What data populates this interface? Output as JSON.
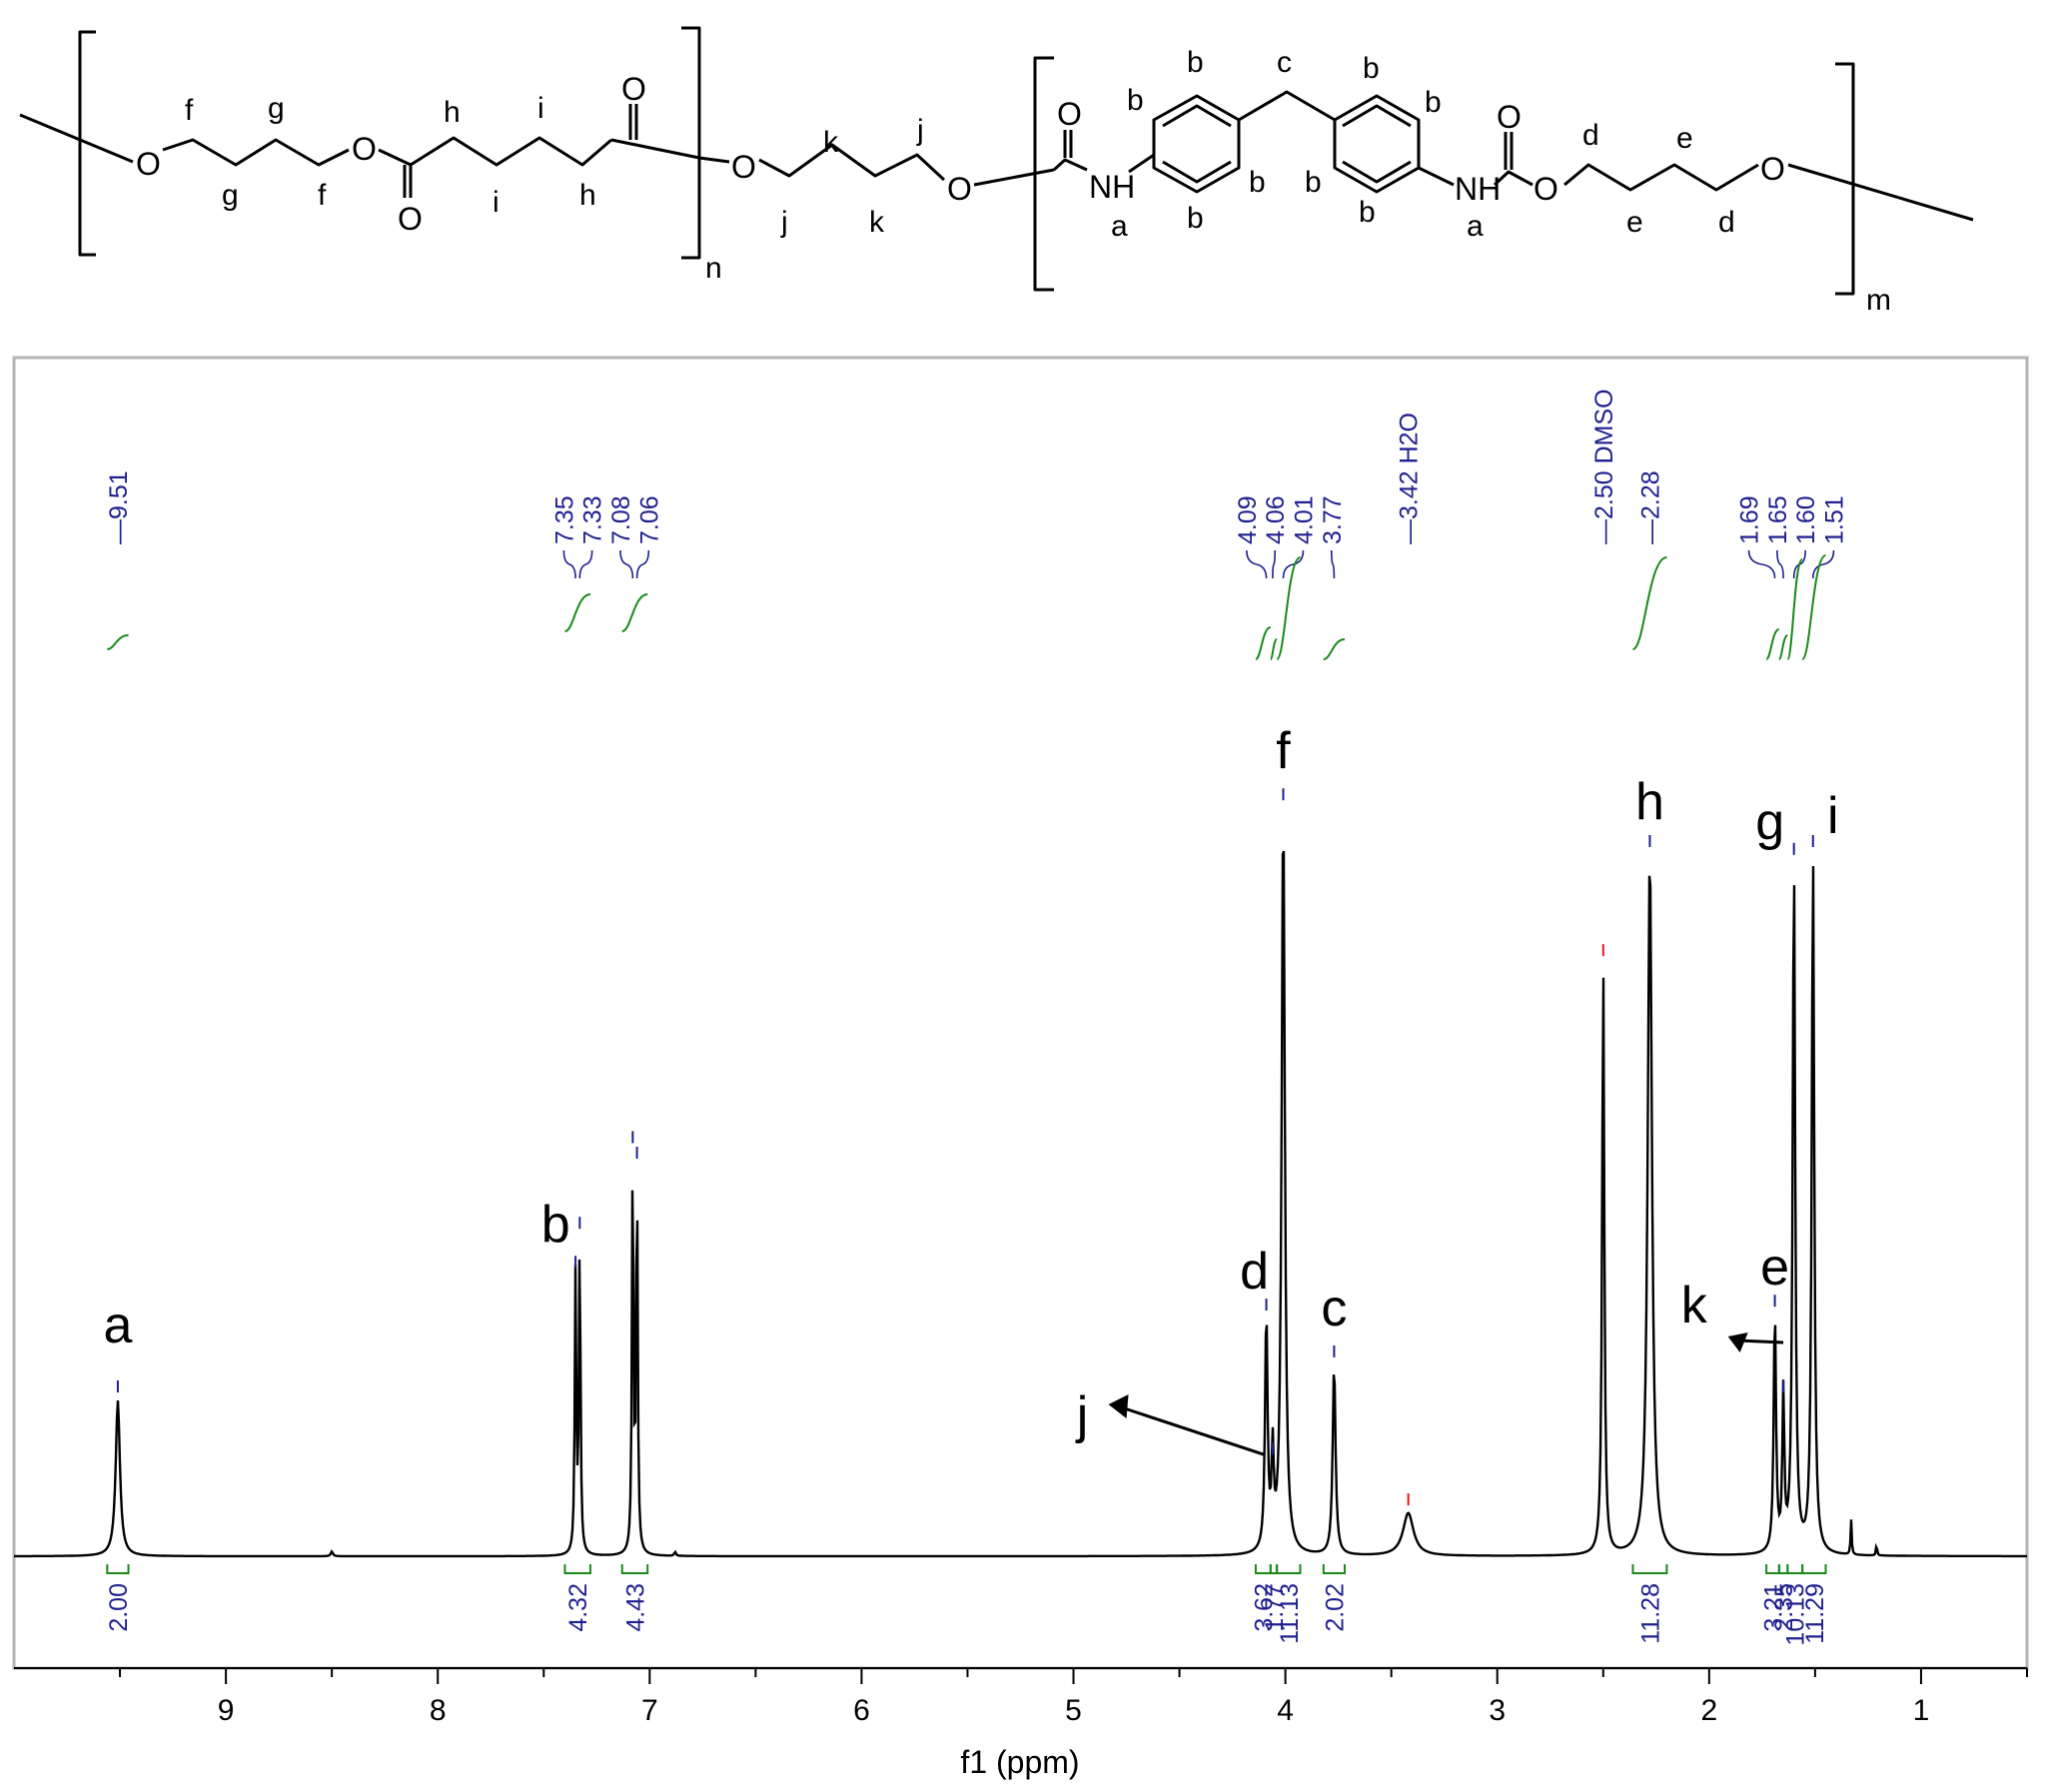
{
  "structure": {
    "atoms": {
      "o1": "O",
      "o2": "O",
      "o3": "O",
      "o4": "O",
      "o5": "O",
      "o6": "O",
      "o7": "O",
      "o8": "O",
      "o9": "O",
      "o10": "O",
      "o11": "O",
      "nh1": "NH",
      "nh2": "NH"
    },
    "subscripts": {
      "n": "n",
      "m": "m"
    },
    "hlabels": [
      "f",
      "g",
      "g",
      "f",
      "h",
      "i",
      "i",
      "h",
      "k",
      "j",
      "j",
      "k",
      "a",
      "b",
      "b",
      "b",
      "b",
      "c",
      "b",
      "b",
      "b",
      "b",
      "a",
      "d",
      "e",
      "e",
      "d"
    ]
  },
  "chart_data": {
    "type": "line",
    "title": "",
    "xlabel": "f1 (ppm)",
    "ylabel": "",
    "xlim": [
      10.0,
      0.5
    ],
    "x_reversed": true,
    "grid": false,
    "xticks": [
      9,
      8,
      7,
      6,
      5,
      4,
      3,
      2,
      1
    ],
    "xtick_labels": [
      "9",
      "8",
      "7",
      "6",
      "5",
      "4",
      "3",
      "2",
      "1"
    ],
    "series": [
      {
        "peaks": [
          {
            "shift": 9.51,
            "height": 0.2,
            "width": 0.012
          },
          {
            "shift": 8.5,
            "height": 0.006,
            "width": 0.006
          },
          {
            "shift": 7.35,
            "height": 0.36,
            "width": 0.0042
          },
          {
            "shift": 7.33,
            "height": 0.41,
            "width": 0.0042
          },
          {
            "shift": 7.08,
            "height": 0.52,
            "width": 0.0042
          },
          {
            "shift": 7.06,
            "height": 0.5,
            "width": 0.0042
          },
          {
            "shift": 6.88,
            "height": 0.005,
            "width": 0.005
          },
          {
            "shift": 4.09,
            "height": 0.305,
            "width": 0.007
          },
          {
            "shift": 4.06,
            "height": 0.12,
            "width": 0.006
          },
          {
            "shift": 4.01,
            "height": 0.96,
            "width": 0.009
          },
          {
            "shift": 3.77,
            "height": 0.245,
            "width": 0.008
          },
          {
            "shift": 3.42,
            "height": 0.055,
            "width": 0.03
          },
          {
            "shift": 2.5,
            "height": 0.76,
            "width": 0.006
          },
          {
            "shift": 2.28,
            "height": 0.9,
            "width": 0.012
          },
          {
            "shift": 1.69,
            "height": 0.31,
            "width": 0.0065
          },
          {
            "shift": 1.65,
            "height": 0.2,
            "width": 0.0055
          },
          {
            "shift": 1.6,
            "height": 0.89,
            "width": 0.007
          },
          {
            "shift": 1.51,
            "height": 0.9,
            "width": 0.007
          },
          {
            "shift": 1.33,
            "height": 0.045,
            "width": 0.003
          },
          {
            "shift": 1.21,
            "height": 0.015,
            "width": 0.003
          }
        ]
      }
    ],
    "peak_labels": [
      {
        "shift": 9.51,
        "label": "a"
      },
      {
        "shift": 7.34,
        "label": "b"
      },
      {
        "shift": 4.01,
        "label": "f"
      },
      {
        "shift": 4.09,
        "label": "d"
      },
      {
        "shift": 3.77,
        "label": "c"
      },
      {
        "shift": 4.06,
        "label": "j"
      },
      {
        "shift": 2.28,
        "label": "h"
      },
      {
        "shift": 1.6,
        "label": "g"
      },
      {
        "shift": 1.51,
        "label": "i"
      },
      {
        "shift": 1.69,
        "label": "e"
      },
      {
        "shift": 1.65,
        "label": "k"
      }
    ],
    "shift_groups": [
      {
        "labels": [
          "9.51"
        ],
        "shifts": [
          9.51
        ],
        "color": "#1f1f8f"
      },
      {
        "labels": [
          "7.35",
          "7.33",
          "7.08",
          "7.06"
        ],
        "shifts": [
          7.35,
          7.33,
          7.08,
          7.06
        ],
        "color": "#1f1f8f"
      },
      {
        "labels": [
          "4.09",
          "4.06",
          "4.01",
          "3.77"
        ],
        "shifts": [
          4.09,
          4.06,
          4.01,
          3.77
        ],
        "color": "#1f1f8f"
      },
      {
        "labels": [
          "3.42 H2O"
        ],
        "shifts": [
          3.42
        ],
        "color": "#e8151b"
      },
      {
        "labels": [
          "2.50 DMSO"
        ],
        "shifts": [
          2.5
        ],
        "color": "#e8151b"
      },
      {
        "labels": [
          "2.28"
        ],
        "shifts": [
          2.28
        ],
        "color": "#1f1f8f"
      },
      {
        "labels": [
          "1.69",
          "1.65",
          "1.60",
          "1.51"
        ],
        "shifts": [
          1.69,
          1.65,
          1.6,
          1.51
        ],
        "color": "#1f1f8f"
      }
    ],
    "integrals": [
      {
        "value": "2.00",
        "from": 9.56,
        "to": 9.46
      },
      {
        "value": "4.32",
        "from": 7.4,
        "to": 7.28
      },
      {
        "value": "4.43",
        "from": 7.13,
        "to": 7.01
      },
      {
        "value": "3.62",
        "from": 4.14,
        "to": 4.07
      },
      {
        "value": "1.77",
        "from": 4.07,
        "to": 4.04
      },
      {
        "value": "11.13",
        "from": 4.04,
        "to": 3.93
      },
      {
        "value": "2.02",
        "from": 3.82,
        "to": 3.72
      },
      {
        "value": "11.28",
        "from": 2.36,
        "to": 2.2
      },
      {
        "value": "3.21",
        "from": 1.73,
        "to": 1.67
      },
      {
        "value": "2.35",
        "from": 1.67,
        "to": 1.63
      },
      {
        "value": "10.13",
        "from": 1.63,
        "to": 1.56
      },
      {
        "value": "11.29",
        "from": 1.56,
        "to": 1.45
      }
    ],
    "colors": {
      "spectrum": "#000000",
      "integral": "#1a8a1a",
      "shift_label": "#1f1f8f",
      "solvent_label": "#e8151b",
      "frame": "#b3b3b3"
    }
  }
}
